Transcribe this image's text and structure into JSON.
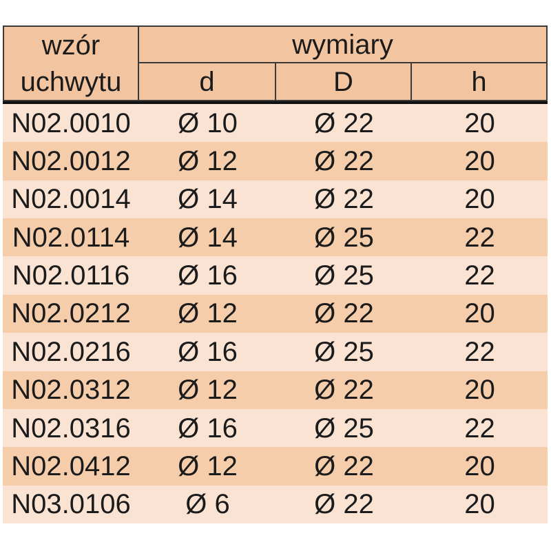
{
  "table": {
    "header": {
      "model_label_line1": "wzór",
      "model_label_line2": "uchwytu",
      "dimensions_label": "wymiary",
      "columns": [
        "d",
        "D",
        "h"
      ]
    },
    "rows": [
      {
        "model": "N02.0010",
        "d": "Ø 10",
        "D": "Ø 22",
        "h": "20"
      },
      {
        "model": "N02.0012",
        "d": "Ø 12",
        "D": "Ø 22",
        "h": "20"
      },
      {
        "model": "N02.0014",
        "d": "Ø 14",
        "D": "Ø 22",
        "h": "20"
      },
      {
        "model": "N02.0114",
        "d": "Ø 14",
        "D": "Ø 25",
        "h": "22"
      },
      {
        "model": "N02.0116",
        "d": "Ø 16",
        "D": "Ø 25",
        "h": "22"
      },
      {
        "model": "N02.0212",
        "d": "Ø 12",
        "D": "Ø 22",
        "h": "20"
      },
      {
        "model": "N02.0216",
        "d": "Ø 16",
        "D": "Ø 25",
        "h": "22"
      },
      {
        "model": "N02.0312",
        "d": "Ø 12",
        "D": "Ø 22",
        "h": "20"
      },
      {
        "model": "N02.0316",
        "d": "Ø 16",
        "D": "Ø 25",
        "h": "22"
      },
      {
        "model": "N02.0412",
        "d": "Ø 12",
        "D": "Ø 22",
        "h": "20"
      },
      {
        "model": "N03.0106",
        "d": "Ø 6",
        "D": "Ø 22",
        "h": "20"
      }
    ]
  },
  "chart_data": {
    "type": "table",
    "title": "",
    "column_group": {
      "label": "wymiary",
      "spans": [
        "d",
        "D",
        "h"
      ]
    },
    "columns": [
      "wzór uchwytu",
      "d",
      "D",
      "h"
    ],
    "rows": [
      [
        "N02.0010",
        "Ø 10",
        "Ø 22",
        "20"
      ],
      [
        "N02.0012",
        "Ø 12",
        "Ø 22",
        "20"
      ],
      [
        "N02.0014",
        "Ø 14",
        "Ø 22",
        "20"
      ],
      [
        "N02.0114",
        "Ø 14",
        "Ø 25",
        "22"
      ],
      [
        "N02.0116",
        "Ø 16",
        "Ø 25",
        "22"
      ],
      [
        "N02.0212",
        "Ø 12",
        "Ø 22",
        "20"
      ],
      [
        "N02.0216",
        "Ø 16",
        "Ø 25",
        "22"
      ],
      [
        "N02.0312",
        "Ø 12",
        "Ø 22",
        "20"
      ],
      [
        "N02.0316",
        "Ø 16",
        "Ø 25",
        "22"
      ],
      [
        "N02.0412",
        "Ø 12",
        "Ø 22",
        "20"
      ],
      [
        "N03.0106",
        "Ø 6",
        "Ø 22",
        "20"
      ]
    ],
    "layout": {
      "striped_rows": true,
      "first_data_row_shade": "light",
      "header_divider": "thick-black"
    }
  },
  "colors": {
    "page_bg": "#ffffff",
    "header_bg": "#f2c5a0",
    "row_light": "#fbe3d4",
    "row_dark": "#f6cdab",
    "border": "#3a3a3a",
    "divider": "#111111",
    "text": "#1b1b1b"
  }
}
